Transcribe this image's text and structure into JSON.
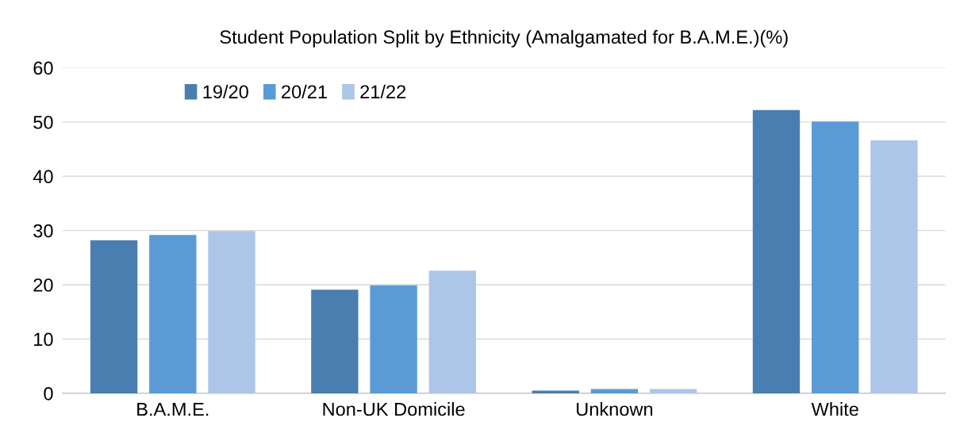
{
  "chart_data": {
    "type": "bar",
    "title": "Student Population Split by Ethnicity (Amalgamated for B.A.M.E.)(%)",
    "categories": [
      "B.A.M.E.",
      "Non-UK Domicile",
      "Unknown",
      "White"
    ],
    "series": [
      {
        "name": "19/20",
        "color": "#4a7eb0",
        "values": [
          28.2,
          19.1,
          0.5,
          52.2
        ]
      },
      {
        "name": "20/21",
        "color": "#5b9bd5",
        "values": [
          29.2,
          19.9,
          0.8,
          50.1
        ]
      },
      {
        "name": "21/22",
        "color": "#adc5e7",
        "values": [
          29.9,
          22.6,
          0.8,
          46.6
        ]
      }
    ],
    "ylim": [
      0,
      60
    ],
    "yticks": [
      0,
      10,
      20,
      30,
      40,
      50,
      60
    ],
    "grid": "y",
    "legend": "top left"
  }
}
